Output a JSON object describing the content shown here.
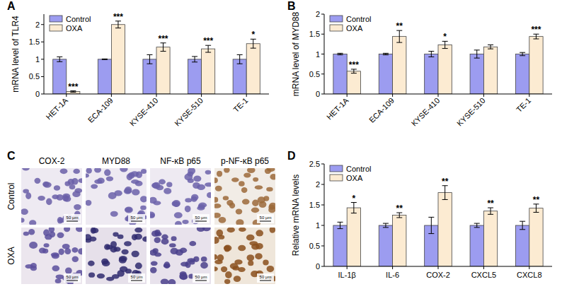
{
  "chart_data": [
    {
      "type": "bar",
      "panel_label": "A",
      "y_label": "mRNA level of TLR4",
      "categories": [
        "HET-1A",
        "ECA-109",
        "KYSE-410",
        "KYSE-510",
        "TE-1"
      ],
      "series": [
        {
          "name": "Control",
          "color": "#9c9cf0",
          "values": [
            1,
            1,
            1,
            1,
            1
          ],
          "errors": [
            0.07,
            0.01,
            0.13,
            0.08,
            0.13
          ]
        },
        {
          "name": "OXA",
          "color": "#fcebd2",
          "values": [
            0.07,
            2.0,
            1.35,
            1.3,
            1.45
          ],
          "errors": [
            0.02,
            0.1,
            0.12,
            0.1,
            0.13
          ],
          "significance": [
            "***",
            "***",
            "***",
            "***",
            "*"
          ]
        }
      ],
      "ylim": [
        0,
        2.3
      ],
      "yticks": [
        0,
        0.5,
        1,
        1.5,
        2
      ],
      "grid": false,
      "legend": "top-left"
    },
    {
      "type": "bar",
      "panel_label": "B",
      "y_label": "mRNA level of MYD88",
      "categories": [
        "HET-1A",
        "ECA-109",
        "KYSE-410",
        "KYSE-510",
        "TE-1"
      ],
      "series": [
        {
          "name": "Control",
          "color": "#9c9cf0",
          "values": [
            1,
            1,
            1,
            1,
            1
          ],
          "errors": [
            0.02,
            0.02,
            0.07,
            0.1,
            0.04
          ]
        },
        {
          "name": "OXA",
          "color": "#fcebd2",
          "values": [
            0.57,
            1.44,
            1.23,
            1.18,
            1.44
          ],
          "errors": [
            0.05,
            0.15,
            0.09,
            0.05,
            0.06
          ],
          "significance": [
            "***",
            "**",
            "*",
            null,
            "***"
          ]
        }
      ],
      "ylim": [
        0,
        2
      ],
      "yticks": [
        0,
        0.5,
        1,
        1.5,
        2
      ],
      "grid": false,
      "legend": "top-left"
    },
    {
      "type": "bar",
      "panel_label": "D",
      "y_label": "Relative mRNA  levels",
      "categories": [
        "IL-1β",
        "IL-6",
        "COX-2",
        "CXCL5",
        "CXCL8"
      ],
      "series": [
        {
          "name": "Control",
          "color": "#9c9cf0",
          "values": [
            1,
            1,
            1,
            1,
            1
          ],
          "errors": [
            0.08,
            0.05,
            0.2,
            0.05,
            0.1
          ]
        },
        {
          "name": "OXA",
          "color": "#fcebd2",
          "values": [
            1.43,
            1.25,
            1.8,
            1.35,
            1.42
          ],
          "errors": [
            0.13,
            0.06,
            0.17,
            0.08,
            0.1
          ],
          "significance": [
            "*",
            "**",
            "**",
            "**",
            "**"
          ]
        }
      ],
      "ylim": [
        0,
        2.5
      ],
      "yticks": [
        0,
        0.5,
        1,
        1.5,
        2,
        2.5
      ],
      "grid": false,
      "legend": "top-left"
    }
  ],
  "image_panel": {
    "panel_label": "C",
    "columns": [
      "COX-2",
      "MYD88",
      "NF-κB p65",
      "p-NF-κB p65"
    ],
    "rows": [
      "Control",
      "OXA"
    ],
    "scale_bar": "50 μm"
  }
}
